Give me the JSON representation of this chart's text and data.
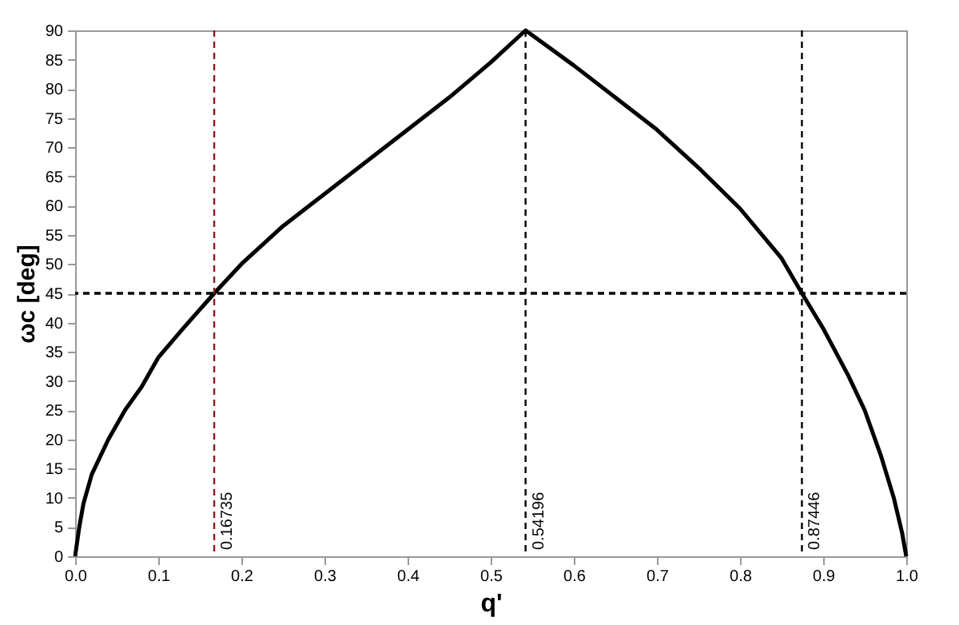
{
  "chart_data": {
    "type": "line",
    "xlabel": "q'",
    "ylabel": "ωc [deg]",
    "xlim": [
      0,
      1
    ],
    "ylim": [
      0,
      90
    ],
    "xticks": [
      {
        "value": 0,
        "label": "0.0"
      },
      0.1,
      0.2,
      0.3,
      0.4,
      0.5,
      0.6,
      0.7,
      0.8,
      0.9,
      {
        "value": 1,
        "label": "1.0"
      }
    ],
    "yticks": [
      0,
      5,
      10,
      15,
      20,
      25,
      30,
      35,
      40,
      45,
      50,
      55,
      60,
      65,
      70,
      75,
      80,
      85,
      90
    ],
    "grid": false,
    "marker": "none",
    "line_style": "solid",
    "series": [
      {
        "color": "#000000",
        "x": [
          0,
          0.005,
          0.01,
          0.02,
          0.04,
          0.06,
          0.08,
          0.1,
          0.13,
          0.16735,
          0.2,
          0.25,
          0.3,
          0.35,
          0.4,
          0.45,
          0.5,
          0.54196,
          0.6,
          0.65,
          0.7,
          0.75,
          0.8,
          0.85,
          0.87446,
          0.9,
          0.93,
          0.95,
          0.97,
          0.985,
          0.995,
          1
        ],
        "values": [
          0,
          5,
          9,
          14,
          20,
          25,
          29,
          34,
          39,
          45,
          50,
          56.5,
          62,
          67.5,
          73,
          78.5,
          84.5,
          90,
          84,
          78.5,
          73,
          66.5,
          59.5,
          51,
          45,
          39,
          31,
          25,
          17,
          10,
          4,
          0
        ]
      }
    ],
    "ref_lines": [
      {
        "axis": "x",
        "value": 0.16735,
        "label": "0.16735",
        "color": "#8b1a1a",
        "line_style": "dashed"
      },
      {
        "axis": "x",
        "value": 0.54196,
        "label": "0.54196",
        "color": "#000000",
        "line_style": "dashed"
      },
      {
        "axis": "x",
        "value": 0.87446,
        "label": "0.87446",
        "color": "#000000",
        "line_style": "dashed"
      },
      {
        "axis": "y",
        "value": 45,
        "color": "#000000",
        "line_style": "dashed"
      }
    ]
  }
}
